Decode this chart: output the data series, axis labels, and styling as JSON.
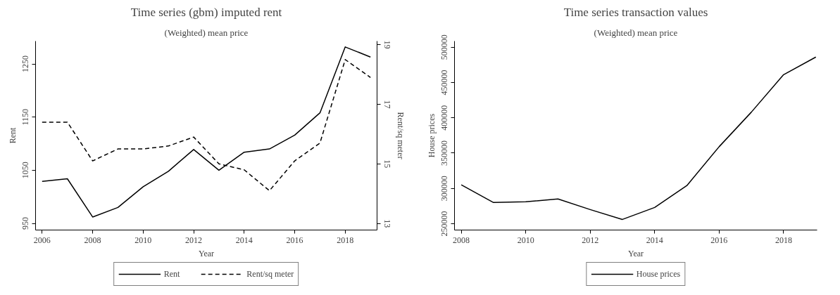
{
  "chart_data": [
    {
      "type": "line",
      "title": "Time series (gbm) imputed rent",
      "subtitle": "(Weighted) mean price",
      "xlabel": "Year",
      "ylabel": "Rent",
      "y2label": "Rent/sq meter",
      "x": [
        2006,
        2007,
        2008,
        2009,
        2010,
        2011,
        2012,
        2013,
        2014,
        2015,
        2016,
        2017,
        2018,
        2019
      ],
      "series": [
        {
          "name": "Rent",
          "color": "#000000",
          "line_style": "solid",
          "values": [
            1029,
            1034,
            962,
            980,
            1019,
            1048,
            1089,
            1050,
            1084,
            1090,
            1116,
            1158,
            1282,
            1263
          ]
        },
        {
          "name": "Rent/sq meter",
          "color": "#000000",
          "line_style": "dashed",
          "axis": "y2",
          "values": [
            16.4,
            16.4,
            15.1,
            15.5,
            15.5,
            15.6,
            15.9,
            15.0,
            14.8,
            14.1,
            15.1,
            15.7,
            18.5,
            17.9
          ]
        }
      ],
      "xlim": [
        2005.74,
        2019.26
      ],
      "xticks": [
        2006,
        2008,
        2010,
        2012,
        2014,
        2016,
        2018
      ],
      "ylim": [
        937.5,
        1293
      ],
      "yticks": [
        950,
        1050,
        1150,
        1250
      ],
      "y2lim": [
        12.78,
        19.12
      ],
      "y2ticks": [
        13,
        15,
        17,
        19
      ],
      "legend": "bottom",
      "grid": false
    },
    {
      "type": "line",
      "title": "Time series transaction values",
      "subtitle": "(Weighted) mean price",
      "xlabel": "Year",
      "ylabel": "House prices",
      "x": [
        2008,
        2009,
        2010,
        2011,
        2012,
        2013,
        2014,
        2015,
        2016,
        2017,
        2018,
        2019
      ],
      "series": [
        {
          "name": "House prices",
          "color": "#000000",
          "line_style": "solid",
          "values": [
            305000,
            280000,
            281000,
            285000,
            270000,
            256000,
            273000,
            304000,
            359000,
            408000,
            461000,
            486000
          ]
        }
      ],
      "xlim": [
        2007.79,
        2019.04
      ],
      "xticks": [
        2008,
        2010,
        2012,
        2014,
        2016,
        2018
      ],
      "ylim": [
        241000,
        508600
      ],
      "yticks": [
        250000,
        300000,
        350000,
        400000,
        450000,
        500000
      ],
      "legend": "bottom",
      "grid": false
    }
  ]
}
